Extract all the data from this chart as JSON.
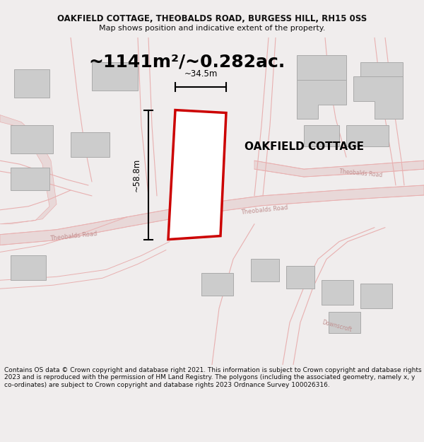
{
  "title_line1": "OAKFIELD COTTAGE, THEOBALDS ROAD, BURGESS HILL, RH15 0SS",
  "title_line2": "Map shows position and indicative extent of the property.",
  "area_text": "~1141m²/~0.282ac.",
  "property_label": "OAKFIELD COTTAGE",
  "dim_height": "~58.8m",
  "dim_width": "~34.5m",
  "footer_text": "Contains OS data © Crown copyright and database right 2021. This information is subject to Crown copyright and database rights 2023 and is reproduced with the permission of HM Land Registry. The polygons (including the associated geometry, namely x, y co-ordinates) are subject to Crown copyright and database rights 2023 Ordnance Survey 100026316.",
  "bg_color": "#f0eded",
  "map_bg": "#ffffff",
  "road_color": "#e8b0b0",
  "road_fill": "#e8d8d8",
  "building_color": "#cccccc",
  "building_edge": "#aaaaaa",
  "plot_outline_color": "#cc0000",
  "dim_line_color": "#111111",
  "road_label_color": "#c09090",
  "title_color": "#111111",
  "footer_color": "#111111",
  "title_fontsize": 8.5,
  "subtitle_fontsize": 8.0,
  "area_fontsize": 18,
  "label_fontsize": 11,
  "dim_fontsize": 8.5,
  "road_label_fontsize": 6.0,
  "footer_fontsize": 6.5
}
